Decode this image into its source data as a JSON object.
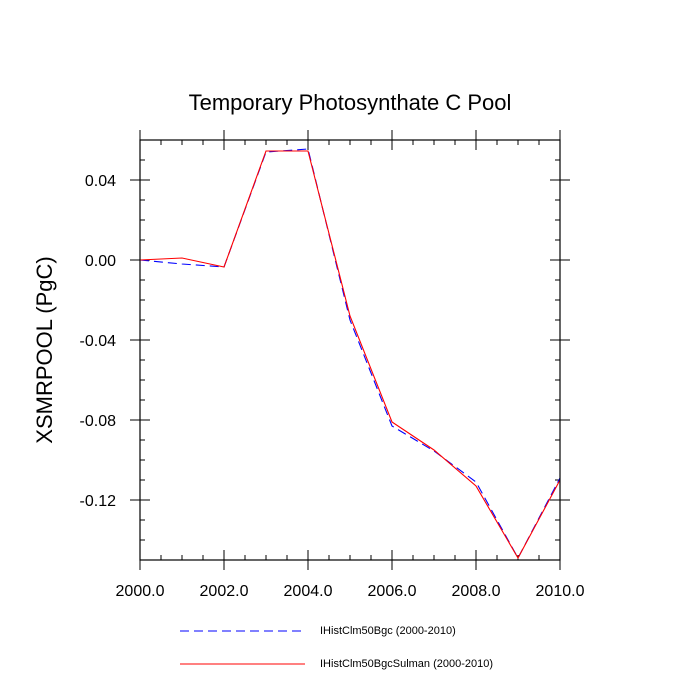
{
  "chart_data": {
    "type": "line",
    "title": "Temporary Photosynthate C Pool",
    "xlabel": "",
    "ylabel": "XSMRPOOL  (PgC)",
    "xlim": [
      2000,
      2010
    ],
    "ylim": [
      -0.15,
      0.06
    ],
    "x_ticks": [
      2000,
      2002,
      2004,
      2006,
      2008,
      2010
    ],
    "x_tick_labels": [
      "2000.0",
      "2002.0",
      "2004.0",
      "2006.0",
      "2008.0",
      "2010.0"
    ],
    "y_ticks": [
      0.04,
      0.0,
      -0.04,
      -0.08,
      -0.12
    ],
    "y_tick_labels": [
      "0.04",
      "0.00",
      "-0.04",
      "-0.08",
      "-0.12"
    ],
    "grid": false,
    "legend_position": "bottom",
    "x": [
      2000,
      2001,
      2002,
      2003,
      2004,
      2005,
      2006,
      2007,
      2008,
      2009,
      2010
    ],
    "series": [
      {
        "name": "IHistClm50Bgc (2000-2010)",
        "color": "#0000ff",
        "style": "dashed",
        "values": [
          0.0,
          -0.002,
          -0.0035,
          0.054,
          0.0555,
          -0.03,
          -0.083,
          -0.0955,
          -0.111,
          -0.149,
          -0.109
        ]
      },
      {
        "name": "IHistClm50BgcSulman (2000-2010)",
        "color": "#ff0000",
        "style": "solid",
        "values": [
          0.0,
          0.001,
          -0.0035,
          0.0545,
          0.0545,
          -0.028,
          -0.081,
          -0.095,
          -0.113,
          -0.149,
          -0.11
        ]
      }
    ]
  }
}
